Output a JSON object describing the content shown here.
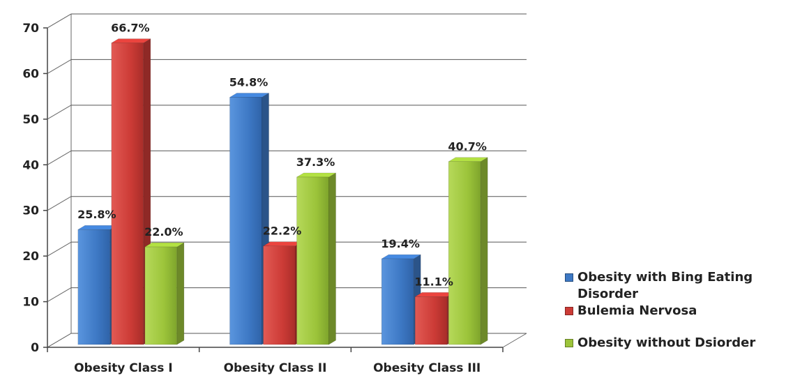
{
  "chart_data": {
    "type": "bar",
    "categories": [
      "Obesity Class I",
      "Obesity Class II",
      "Obesity Class III"
    ],
    "series": [
      {
        "name": "Obesity with Bing Eating Disorder",
        "values": [
          25.8,
          54.8,
          19.4
        ],
        "labels": [
          "25.8%",
          "54.8%",
          "19.4%"
        ],
        "color": "#3d78c4"
      },
      {
        "name": "Bulemia Nervosa",
        "values": [
          66.7,
          22.2,
          11.1
        ],
        "labels": [
          "66.7%",
          "22.2%",
          "11.1%"
        ],
        "color": "#cc3b36"
      },
      {
        "name": "Obesity without Dsiorder",
        "values": [
          22.0,
          37.3,
          40.7
        ],
        "labels": [
          "22.0%",
          "37.3%",
          "40.7%"
        ],
        "color": "#9cc43a"
      }
    ],
    "yticks": [
      "0",
      "10",
      "20",
      "30",
      "40",
      "50",
      "60",
      "70"
    ],
    "ylim": [
      0,
      70
    ],
    "grid": true,
    "legend_position": "right",
    "title": "",
    "xlabel": "",
    "ylabel": ""
  }
}
